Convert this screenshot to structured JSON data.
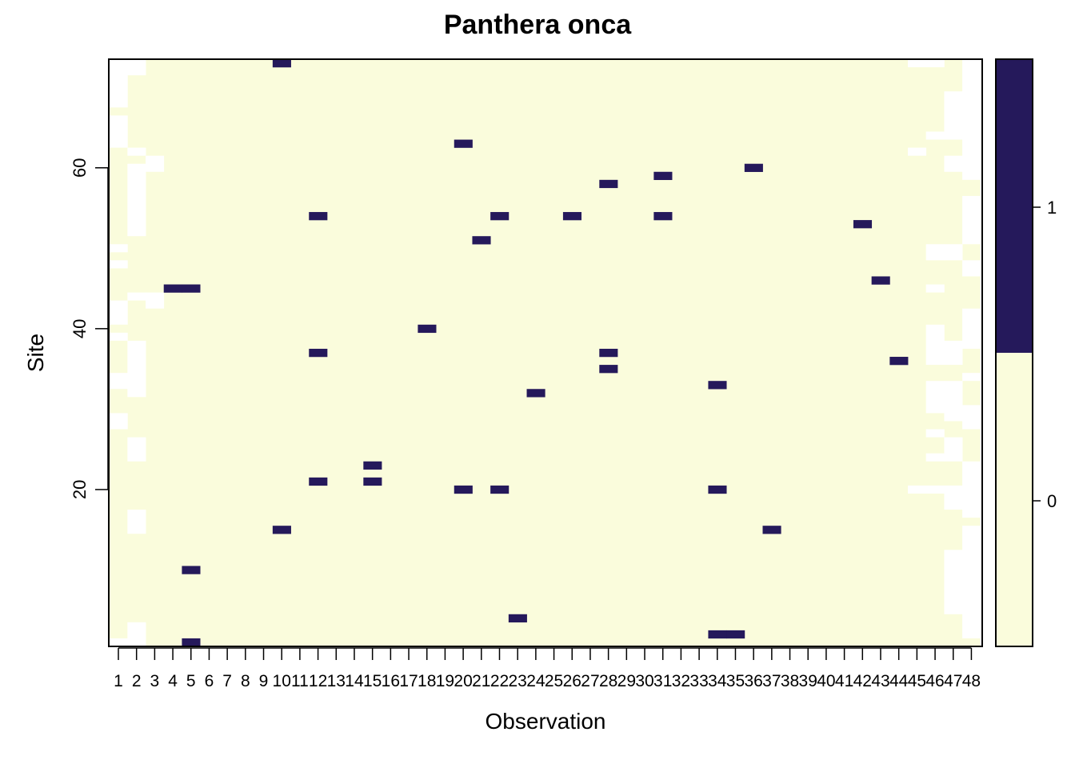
{
  "chart_data": {
    "type": "heatmap",
    "title": "Panthera onca",
    "xlabel": "Observation",
    "ylabel": "Site",
    "n_observations": 48,
    "n_sites": 73,
    "x_ticks": [
      "1",
      "2",
      "3",
      "4",
      "5",
      "6",
      "7",
      "8",
      "9",
      "10",
      "11",
      "12",
      "13",
      "14",
      "15",
      "16",
      "17",
      "18",
      "19",
      "20",
      "21",
      "22",
      "23",
      "24",
      "25",
      "26",
      "27",
      "28",
      "29",
      "30",
      "31",
      "32",
      "33",
      "34",
      "35",
      "36",
      "37",
      "38",
      "39",
      "40",
      "41",
      "42",
      "43",
      "44",
      "45",
      "46",
      "47",
      "48"
    ],
    "y_ticks": [
      20,
      40,
      60
    ],
    "colorbar": {
      "ticks": [
        0,
        1
      ],
      "colors": {
        "0": "#FAFCDC",
        "1": "#25195B"
      }
    },
    "detections": [
      {
        "obs": 10,
        "site": 73
      },
      {
        "obs": 20,
        "site": 63
      },
      {
        "obs": 36,
        "site": 60
      },
      {
        "obs": 31,
        "site": 59
      },
      {
        "obs": 28,
        "site": 58
      },
      {
        "obs": 12,
        "site": 54
      },
      {
        "obs": 22,
        "site": 54
      },
      {
        "obs": 26,
        "site": 54
      },
      {
        "obs": 31,
        "site": 54
      },
      {
        "obs": 42,
        "site": 53
      },
      {
        "obs": 21,
        "site": 51
      },
      {
        "obs": 43,
        "site": 46
      },
      {
        "obs": 4,
        "site": 45
      },
      {
        "obs": 5,
        "site": 45
      },
      {
        "obs": 18,
        "site": 40
      },
      {
        "obs": 12,
        "site": 37
      },
      {
        "obs": 28,
        "site": 37
      },
      {
        "obs": 44,
        "site": 36
      },
      {
        "obs": 28,
        "site": 35
      },
      {
        "obs": 34,
        "site": 33
      },
      {
        "obs": 24,
        "site": 32
      },
      {
        "obs": 15,
        "site": 23
      },
      {
        "obs": 12,
        "site": 21
      },
      {
        "obs": 15,
        "site": 21
      },
      {
        "obs": 20,
        "site": 20
      },
      {
        "obs": 22,
        "site": 20
      },
      {
        "obs": 34,
        "site": 20
      },
      {
        "obs": 10,
        "site": 15
      },
      {
        "obs": 37,
        "site": 15
      },
      {
        "obs": 5,
        "site": 10
      },
      {
        "obs": 23,
        "site": 4
      },
      {
        "obs": 34,
        "site": 2
      },
      {
        "obs": 35,
        "site": 2
      },
      {
        "obs": 5,
        "site": 1
      }
    ],
    "missing_segments": [
      {
        "obs": 1,
        "sites": [
          [
            1,
            1
          ],
          [
            28,
            29
          ],
          [
            33,
            34
          ],
          [
            39,
            39
          ],
          [
            41,
            43
          ],
          [
            48,
            48
          ],
          [
            50,
            50
          ],
          [
            63,
            66
          ],
          [
            68,
            73
          ]
        ]
      },
      {
        "obs": 2,
        "sites": [
          [
            1,
            3
          ],
          [
            15,
            17
          ],
          [
            24,
            26
          ],
          [
            32,
            38
          ],
          [
            44,
            44
          ],
          [
            52,
            60
          ],
          [
            62,
            62
          ],
          [
            72,
            73
          ]
        ]
      },
      {
        "obs": 3,
        "sites": [
          [
            43,
            44
          ],
          [
            60,
            61
          ]
        ]
      },
      {
        "obs": 45,
        "sites": [
          [
            20,
            20
          ],
          [
            62,
            62
          ],
          [
            73,
            73
          ]
        ]
      },
      {
        "obs": 46,
        "sites": [
          [
            20,
            20
          ],
          [
            24,
            24
          ],
          [
            27,
            27
          ],
          [
            30,
            33
          ],
          [
            36,
            40
          ],
          [
            45,
            45
          ],
          [
            49,
            50
          ],
          [
            64,
            64
          ],
          [
            73,
            73
          ]
        ]
      },
      {
        "obs": 47,
        "sites": [
          [
            5,
            12
          ],
          [
            18,
            20
          ],
          [
            24,
            26
          ],
          [
            29,
            33
          ],
          [
            36,
            38
          ],
          [
            49,
            50
          ],
          [
            60,
            61
          ],
          [
            64,
            69
          ]
        ]
      },
      {
        "obs": 48,
        "sites": [
          [
            2,
            15
          ],
          [
            17,
            23
          ],
          [
            28,
            30
          ],
          [
            34,
            34
          ],
          [
            38,
            42
          ],
          [
            47,
            48
          ],
          [
            51,
            56
          ],
          [
            59,
            73
          ]
        ]
      }
    ]
  }
}
